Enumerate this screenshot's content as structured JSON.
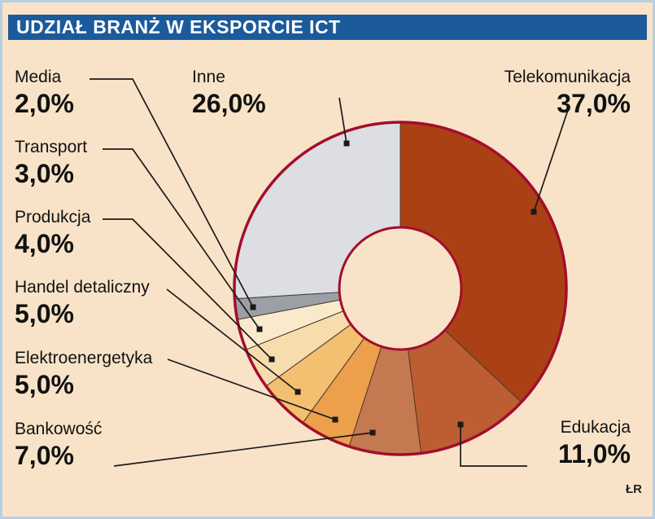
{
  "title": "UDZIAŁ BRANŻ W EKSPORCIE ICT",
  "credit": "ŁR",
  "colors": {
    "background": "#f8e3c8",
    "frame_border": "#b7cee3",
    "title_bar": "#1b5a9b",
    "title_text": "#ffffff",
    "donut_outline": "#a30d2d",
    "segment_separator": "#4d3b2e",
    "leader_line": "#1a1a1a"
  },
  "chart_data": {
    "type": "pie",
    "subtype": "donut",
    "title": "UDZIAŁ BRANŻ W EKSPORCIE ICT",
    "unit": "%",
    "start_angle_deg": 0,
    "direction": "clockwise",
    "legend_position": "around-with-leader-lines",
    "items": [
      {
        "label": "Telekomunikacja",
        "value": 37.0,
        "display": "37,0%",
        "color": "#ac4015"
      },
      {
        "label": "Edukacja",
        "value": 11.0,
        "display": "11,0%",
        "color": "#bc5e31"
      },
      {
        "label": "Bankowość",
        "value": 7.0,
        "display": "7,0%",
        "color": "#c57950"
      },
      {
        "label": "Elektroenergetyka",
        "value": 5.0,
        "display": "5,0%",
        "color": "#eca04b"
      },
      {
        "label": "Handel detaliczny",
        "value": 5.0,
        "display": "5,0%",
        "color": "#f3bf70"
      },
      {
        "label": "Produkcja",
        "value": 4.0,
        "display": "4,0%",
        "color": "#f7ddad"
      },
      {
        "label": "Transport",
        "value": 3.0,
        "display": "3,0%",
        "color": "#faeacc"
      },
      {
        "label": "Media",
        "value": 2.0,
        "display": "2,0%",
        "color": "#9aa0a6"
      },
      {
        "label": "Inne",
        "value": 26.0,
        "display": "26,0%",
        "color": "#dcdee4"
      }
    ]
  }
}
